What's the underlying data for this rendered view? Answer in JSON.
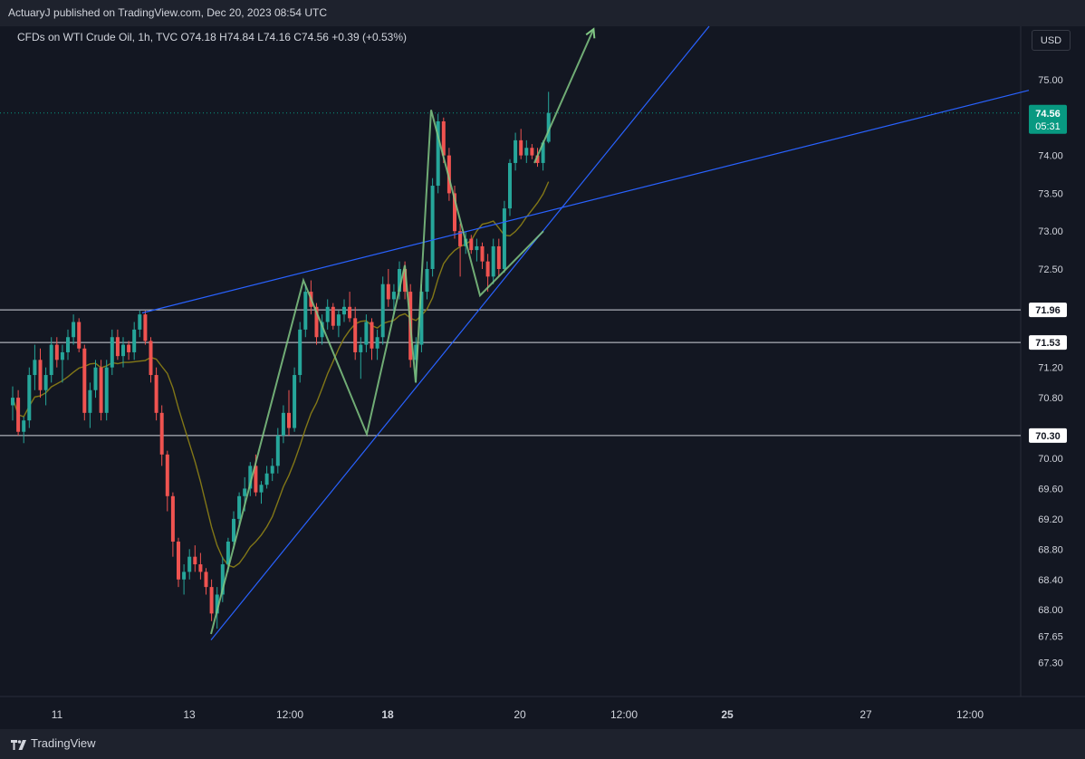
{
  "header": {
    "publish_line": "ActuaryJ published on TradingView.com, Dec 20, 2023 08:54 UTC"
  },
  "legend": {
    "symbol_line": "CFDs on WTI Crude Oil, 1h, TVC  O74.18  H74.84  L74.16  C74.56  +0.39 (+0.53%)"
  },
  "currency_label": "USD",
  "footer": {
    "brand": "TradingView"
  },
  "colors": {
    "background": "#131722",
    "up_candle": "#26a69a",
    "down_candle": "#ef5350",
    "trendline": "#2962ff",
    "pattern": "#81c784",
    "moving_average": "#827717",
    "price_tag": "#089981"
  },
  "chart_data": {
    "type": "candlestick",
    "symbol": "CFDs on WTI Crude Oil",
    "interval": "1h",
    "ylim": [
      67.0,
      75.5
    ],
    "y_ticks": [
      "75.00",
      "74.00",
      "73.50",
      "73.00",
      "72.50",
      "71.20",
      "70.80",
      "70.00",
      "69.60",
      "69.20",
      "68.80",
      "68.40",
      "68.00",
      "67.65",
      "67.30"
    ],
    "x_ticks": [
      "11",
      "13",
      "12:00",
      "18",
      "20",
      "12:00",
      "25",
      "27",
      "12:00"
    ],
    "x_ticks_bold": [
      "18",
      "25"
    ],
    "last_price": {
      "value": "74.56",
      "countdown": "05:31"
    },
    "horizontal_levels": [
      {
        "value": 71.96,
        "label": "71.96"
      },
      {
        "value": 71.53,
        "label": "71.53"
      },
      {
        "value": 70.3,
        "label": "70.30"
      }
    ],
    "candles": [
      [
        70.7,
        70.95,
        70.5,
        70.8
      ],
      [
        70.8,
        70.9,
        70.3,
        70.35
      ],
      [
        70.35,
        70.55,
        70.2,
        70.5
      ],
      [
        70.5,
        71.2,
        70.4,
        71.1
      ],
      [
        71.1,
        71.5,
        70.9,
        71.3
      ],
      [
        71.3,
        71.45,
        70.8,
        70.9
      ],
      [
        70.9,
        71.2,
        70.7,
        71.1
      ],
      [
        71.1,
        71.6,
        71.0,
        71.5
      ],
      [
        71.5,
        71.6,
        71.2,
        71.3
      ],
      [
        71.3,
        71.5,
        71.0,
        71.4
      ],
      [
        71.4,
        71.7,
        71.3,
        71.6
      ],
      [
        71.6,
        71.9,
        71.5,
        71.8
      ],
      [
        71.8,
        71.85,
        71.4,
        71.45
      ],
      [
        71.45,
        71.5,
        70.5,
        70.6
      ],
      [
        70.6,
        71.0,
        70.4,
        70.9
      ],
      [
        70.9,
        71.3,
        70.8,
        71.2
      ],
      [
        71.2,
        71.3,
        70.5,
        70.6
      ],
      [
        70.6,
        71.3,
        70.5,
        71.2
      ],
      [
        71.2,
        71.7,
        71.1,
        71.6
      ],
      [
        71.6,
        71.7,
        71.3,
        71.35
      ],
      [
        71.35,
        71.6,
        71.2,
        71.5
      ],
      [
        71.5,
        71.55,
        71.3,
        71.4
      ],
      [
        71.4,
        71.8,
        71.3,
        71.7
      ],
      [
        71.7,
        71.95,
        71.6,
        71.9
      ],
      [
        71.9,
        71.95,
        71.5,
        71.55
      ],
      [
        71.55,
        71.6,
        71.0,
        71.1
      ],
      [
        71.1,
        71.2,
        70.5,
        70.6
      ],
      [
        70.6,
        70.7,
        69.9,
        70.05
      ],
      [
        70.05,
        70.1,
        69.3,
        69.5
      ],
      [
        69.5,
        69.55,
        68.7,
        68.9
      ],
      [
        68.9,
        68.95,
        68.3,
        68.4
      ],
      [
        68.4,
        68.6,
        68.2,
        68.5
      ],
      [
        68.5,
        68.8,
        68.4,
        68.7
      ],
      [
        68.7,
        68.85,
        68.5,
        68.6
      ],
      [
        68.6,
        68.75,
        68.4,
        68.5
      ],
      [
        68.5,
        68.55,
        68.2,
        68.3
      ],
      [
        68.3,
        68.4,
        67.85,
        67.95
      ],
      [
        67.95,
        68.3,
        67.75,
        68.2
      ],
      [
        68.2,
        68.7,
        68.1,
        68.6
      ],
      [
        68.6,
        68.95,
        68.5,
        68.9
      ],
      [
        68.9,
        69.3,
        68.8,
        69.2
      ],
      [
        69.2,
        69.55,
        69.1,
        69.5
      ],
      [
        69.5,
        69.75,
        69.3,
        69.6
      ],
      [
        69.6,
        69.95,
        69.5,
        69.9
      ],
      [
        69.9,
        70.05,
        69.5,
        69.55
      ],
      [
        69.55,
        69.7,
        69.4,
        69.65
      ],
      [
        69.65,
        69.9,
        69.6,
        69.8
      ],
      [
        69.8,
        70.0,
        69.7,
        69.9
      ],
      [
        69.9,
        70.4,
        69.8,
        70.3
      ],
      [
        70.3,
        70.7,
        70.2,
        70.6
      ],
      [
        70.6,
        70.9,
        70.3,
        70.4
      ],
      [
        70.4,
        71.2,
        70.35,
        71.1
      ],
      [
        71.1,
        71.8,
        71.0,
        71.7
      ],
      [
        71.7,
        72.3,
        71.6,
        72.2
      ],
      [
        72.2,
        72.35,
        71.9,
        72.0
      ],
      [
        72.0,
        72.05,
        71.5,
        71.6
      ],
      [
        71.6,
        71.9,
        71.5,
        71.8
      ],
      [
        71.8,
        72.1,
        71.7,
        72.0
      ],
      [
        72.0,
        72.05,
        71.7,
        71.75
      ],
      [
        71.75,
        71.95,
        71.6,
        71.9
      ],
      [
        71.9,
        72.1,
        71.8,
        72.0
      ],
      [
        72.0,
        72.2,
        71.8,
        71.85
      ],
      [
        71.85,
        72.0,
        71.3,
        71.4
      ],
      [
        71.4,
        71.6,
        71.05,
        71.5
      ],
      [
        71.5,
        71.9,
        71.4,
        71.8
      ],
      [
        71.8,
        71.85,
        71.3,
        71.45
      ],
      [
        71.45,
        71.7,
        71.3,
        71.6
      ],
      [
        71.6,
        72.4,
        71.5,
        72.3
      ],
      [
        72.3,
        72.5,
        72.0,
        72.1
      ],
      [
        72.1,
        72.3,
        71.9,
        72.2
      ],
      [
        72.2,
        72.6,
        72.1,
        72.5
      ],
      [
        72.5,
        72.6,
        72.1,
        72.2
      ],
      [
        72.2,
        72.3,
        71.2,
        71.3
      ],
      [
        71.3,
        71.6,
        71.0,
        71.5
      ],
      [
        71.5,
        72.3,
        71.4,
        72.2
      ],
      [
        72.2,
        72.6,
        72.1,
        72.5
      ],
      [
        72.5,
        73.7,
        72.4,
        73.6
      ],
      [
        73.6,
        74.55,
        73.5,
        74.45
      ],
      [
        74.45,
        74.5,
        73.9,
        74.0
      ],
      [
        74.0,
        74.1,
        73.4,
        73.5
      ],
      [
        73.5,
        73.6,
        72.9,
        73.0
      ],
      [
        73.0,
        73.1,
        72.4,
        72.8
      ],
      [
        72.8,
        73.0,
        72.7,
        72.9
      ],
      [
        72.9,
        72.95,
        72.7,
        72.75
      ],
      [
        72.75,
        72.9,
        72.6,
        72.8
      ],
      [
        72.8,
        72.85,
        72.5,
        72.6
      ],
      [
        72.6,
        72.7,
        72.2,
        72.4
      ],
      [
        72.4,
        72.9,
        72.3,
        72.8
      ],
      [
        72.8,
        72.9,
        72.4,
        72.5
      ],
      [
        72.5,
        73.4,
        72.45,
        73.3
      ],
      [
        73.3,
        73.95,
        73.2,
        73.9
      ],
      [
        73.9,
        74.3,
        73.8,
        74.2
      ],
      [
        74.2,
        74.35,
        73.95,
        74.0
      ],
      [
        74.0,
        74.2,
        73.9,
        74.1
      ],
      [
        74.1,
        74.15,
        73.95,
        74.0
      ],
      [
        74.0,
        74.1,
        73.85,
        73.9
      ],
      [
        73.9,
        74.2,
        73.8,
        74.17
      ],
      [
        74.18,
        74.84,
        74.16,
        74.56
      ]
    ]
  }
}
